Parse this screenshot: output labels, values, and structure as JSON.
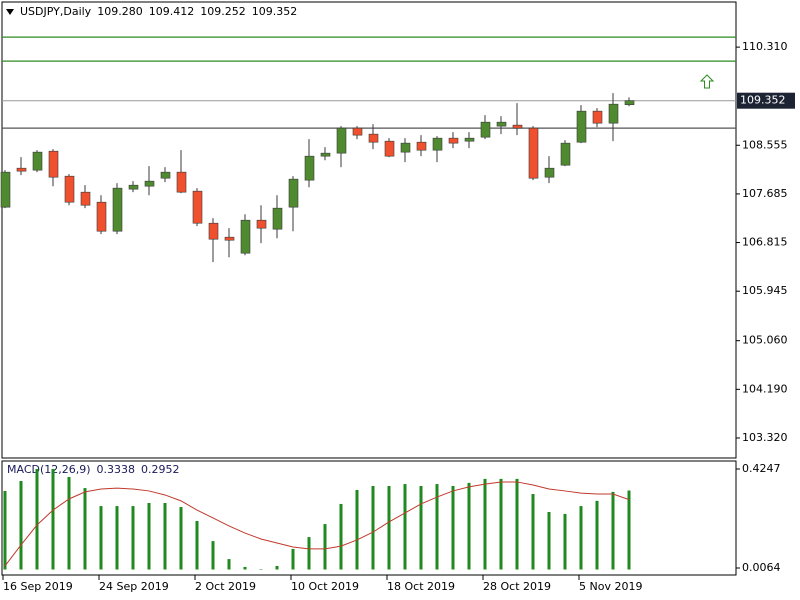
{
  "chart_data": [
    {
      "type": "candlestick",
      "title": "USDJPY,Daily",
      "header_values": [
        "109.280",
        "109.412",
        "109.252",
        "109.352"
      ],
      "categories": [
        "16 Sep 2019",
        null,
        null,
        null,
        null,
        null,
        "24 Sep 2019",
        null,
        null,
        null,
        null,
        null,
        "2 Oct 2019",
        null,
        null,
        null,
        null,
        null,
        "10 Oct 2019",
        null,
        null,
        null,
        null,
        null,
        "18 Oct 2019",
        null,
        null,
        null,
        null,
        null,
        "28 Oct 2019",
        null,
        null,
        null,
        null,
        null,
        "5 Nov 2019",
        null,
        null,
        null
      ],
      "open": [
        107.448,
        108.145,
        108.11,
        108.449,
        108.002,
        107.716,
        107.537,
        107.018,
        107.77,
        107.823,
        107.966,
        108.074,
        107.734,
        107.161,
        106.911,
        106.625,
        107.215,
        107.054,
        107.448,
        107.931,
        108.36,
        108.414,
        108.861,
        108.754,
        108.628,
        108.432,
        108.61,
        108.467,
        108.682,
        108.628,
        108.7,
        108.897,
        108.915,
        108.861,
        107.984,
        108.199,
        108.61,
        109.165,
        108.95,
        109.28
      ],
      "high": [
        108.11,
        108.342,
        108.467,
        108.485,
        108.038,
        107.841,
        107.662,
        107.877,
        107.913,
        108.181,
        108.163,
        108.467,
        107.788,
        107.251,
        107.072,
        107.322,
        107.483,
        107.662,
        108.002,
        108.664,
        108.521,
        108.897,
        108.897,
        108.932,
        108.682,
        108.682,
        108.736,
        108.718,
        108.789,
        108.789,
        109.093,
        109.076,
        109.308,
        108.897,
        108.36,
        108.646,
        109.272,
        109.219,
        109.487,
        109.412
      ],
      "low": [
        107.43,
        108.02,
        108.074,
        107.823,
        107.483,
        107.43,
        106.965,
        106.965,
        107.716,
        107.662,
        107.895,
        107.698,
        107.108,
        106.464,
        106.553,
        106.589,
        106.804,
        106.893,
        107.018,
        107.805,
        108.288,
        108.163,
        108.664,
        108.485,
        108.342,
        108.253,
        108.36,
        108.253,
        108.503,
        108.503,
        108.664,
        108.754,
        108.736,
        107.931,
        107.877,
        108.181,
        108.593,
        108.879,
        108.628,
        109.252
      ],
      "close": [
        108.074,
        108.092,
        108.432,
        107.984,
        107.537,
        107.483,
        107.018,
        107.788,
        107.841,
        107.913,
        108.074,
        107.716,
        107.161,
        106.875,
        106.857,
        107.215,
        107.072,
        107.43,
        107.949,
        108.36,
        108.414,
        108.861,
        108.736,
        108.61,
        108.36,
        108.593,
        108.467,
        108.682,
        108.593,
        108.682,
        108.968,
        108.968,
        108.861,
        107.966,
        108.145,
        108.593,
        109.165,
        108.95,
        109.29,
        109.352
      ],
      "up_color": "#4f8a30",
      "down_color": "#f0502d",
      "wick_color": "#3a3a3a",
      "ylim": [
        102.962,
        111.117
      ],
      "yticks": [
        {
          "value": 110.31,
          "label": "110.310"
        },
        108.555,
        107.685,
        106.815,
        105.945,
        {
          "value": 105.06,
          "label": "105.060"
        },
        {
          "value": 104.19,
          "label": "104.190"
        },
        {
          "value": 103.32,
          "label": "103.320"
        }
      ],
      "levels": [
        {
          "value": 110.489,
          "color": "#2e8b22"
        },
        {
          "value": 110.06,
          "color": "#2e8b22"
        },
        {
          "value": 108.861,
          "color": "#555555"
        }
      ],
      "last_price_line": true,
      "last_price_color": "#9a9a9a"
    },
    {
      "type": "macd",
      "title": "MACD(12,26,9)",
      "histogram": {
        "color": "#1f8a1f",
        "values": [
          0.332,
          0.374,
          0.425,
          0.425,
          0.391,
          0.344,
          0.268,
          0.268,
          0.268,
          0.281,
          0.281,
          0.264,
          0.205,
          0.12,
          0.044,
          0.011,
          0.002,
          0.015,
          0.087,
          0.137,
          0.192,
          0.277,
          0.336,
          0.353,
          0.353,
          0.361,
          0.353,
          0.361,
          0.353,
          0.366,
          0.383,
          0.383,
          0.383,
          0.319,
          0.243,
          0.235,
          0.268,
          0.29,
          0.328,
          0.3338
        ]
      },
      "signal": {
        "color": "#c0392b",
        "values": [
          0.015,
          0.104,
          0.188,
          0.251,
          0.298,
          0.328,
          0.34,
          0.344,
          0.34,
          0.332,
          0.315,
          0.29,
          0.251,
          0.218,
          0.184,
          0.154,
          0.129,
          0.112,
          0.095,
          0.087,
          0.087,
          0.099,
          0.125,
          0.158,
          0.201,
          0.239,
          0.277,
          0.306,
          0.332,
          0.349,
          0.361,
          0.37,
          0.37,
          0.357,
          0.34,
          0.332,
          0.323,
          0.319,
          0.319,
          0.2952
        ]
      },
      "ylim": [
        -0.0232,
        0.4585
      ],
      "yticks": [
        0.4247,
        0.0064
      ]
    }
  ]
}
